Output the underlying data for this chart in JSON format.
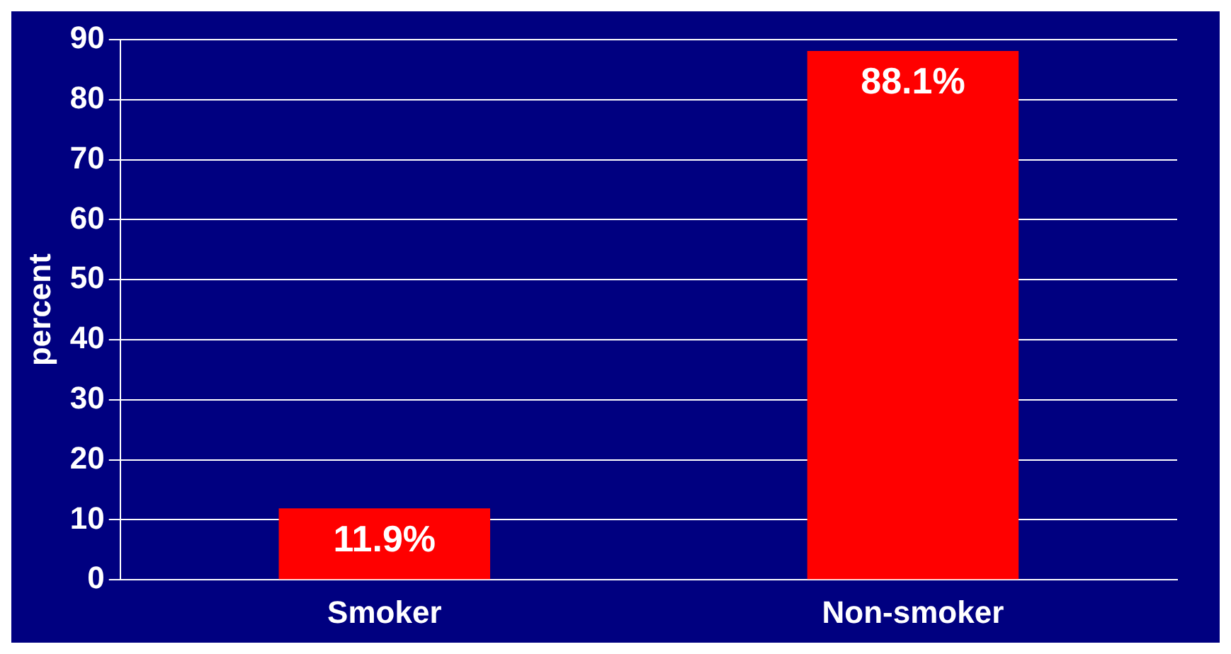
{
  "chart_data": {
    "type": "bar",
    "ylabel": "percent",
    "categories": [
      "Smoker",
      "Non-smoker"
    ],
    "values": [
      11.9,
      88.1
    ],
    "color": "#ff0000",
    "value_labels": [
      "11.9%",
      "88.1%"
    ],
    "ylim": [
      0,
      90
    ],
    "yticks": [
      0,
      10,
      20,
      30,
      40,
      50,
      60,
      70,
      80,
      90
    ],
    "grid": "y",
    "legend": false
  }
}
